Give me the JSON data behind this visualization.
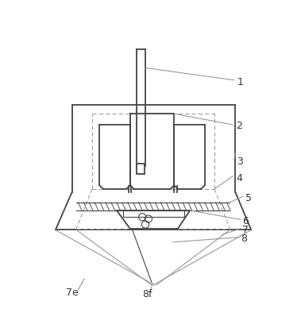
{
  "bg_color": "#ffffff",
  "line_color": "#999999",
  "dark_line": "#444444",
  "label_color": "#333333",
  "figsize": [
    3.79,
    4.23
  ],
  "dpi": 100
}
